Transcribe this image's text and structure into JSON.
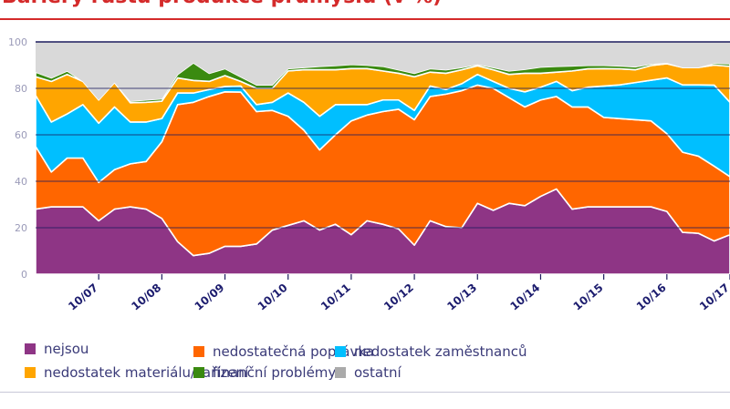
{
  "title": "Bariéry růstu produkce průmyslu (v %)",
  "chart_data": {
    "type": "area",
    "stacked": true,
    "title": "Bariéry růstu produkce průmyslu (v %)",
    "xlabel": "",
    "ylabel": "",
    "ylim": [
      0,
      100
    ],
    "y_ticks": [
      0,
      20,
      40,
      60,
      80,
      100
    ],
    "x_tick_labels": [
      "10/07",
      "10/08",
      "10/09",
      "10/10",
      "10/11",
      "10/12",
      "10/13",
      "10/14",
      "10/15",
      "10/16",
      "10/17"
    ],
    "grid": true,
    "legend_position": "bottom",
    "categories": [
      "10/06",
      "01/07",
      "04/07",
      "07/07",
      "10/07",
      "01/08",
      "04/08",
      "07/08",
      "10/08",
      "01/09",
      "04/09",
      "07/09",
      "10/09",
      "01/10",
      "04/10",
      "07/10",
      "10/10",
      "01/11",
      "04/11",
      "07/11",
      "10/11",
      "01/12",
      "04/12",
      "07/12",
      "10/12",
      "01/13",
      "04/13",
      "07/13",
      "10/13",
      "01/14",
      "04/14",
      "07/14",
      "10/14",
      "01/15",
      "04/15",
      "07/15",
      "10/15",
      "01/16",
      "04/16",
      "07/16",
      "10/16",
      "01/17",
      "04/17",
      "07/17",
      "10/17"
    ],
    "series": [
      {
        "name": "nejsou",
        "color": "#8e3585",
        "values": [
          28,
          29,
          29,
          29,
          23,
          28,
          29,
          28,
          24,
          14,
          8,
          9,
          12,
          12,
          13,
          19,
          21,
          23,
          19,
          21.5,
          17,
          23,
          21.5,
          19.5,
          12.5,
          23,
          20.5,
          20,
          30.5,
          27.5,
          30.5,
          29.5,
          33.5,
          36.7,
          28,
          29,
          29,
          29,
          29,
          29,
          27,
          18,
          17.6,
          14.3,
          17
        ]
      },
      {
        "name": "nedostatečná poptávka",
        "color": "#ff6600",
        "values": [
          27,
          15,
          21,
          21,
          16.5,
          17,
          18.5,
          20.5,
          33,
          59,
          66,
          67.5,
          66.5,
          66.4,
          57,
          51.5,
          47,
          39,
          34.5,
          38.5,
          49,
          45.5,
          48.5,
          51.5,
          54,
          53.5,
          57,
          59,
          50.9,
          52.5,
          45.5,
          42.5,
          41.5,
          39.8,
          44,
          43,
          38.5,
          38,
          37.5,
          37,
          33.5,
          34.5,
          33.2,
          32.2,
          25
        ]
      },
      {
        "name": "nedostatek zaměstnanců",
        "color": "#00bfff",
        "values": [
          22,
          21.5,
          19,
          23,
          25.5,
          27,
          18,
          17,
          10,
          5,
          4,
          3,
          2.3,
          2.6,
          3,
          3.5,
          10,
          12,
          14.5,
          13,
          7,
          4.5,
          5,
          4,
          4,
          4.5,
          2,
          3,
          4.6,
          3,
          4,
          6.5,
          5.5,
          6.5,
          7,
          8.5,
          13.5,
          14.5,
          16,
          17.5,
          24,
          29,
          30.7,
          34.9,
          32
        ]
      },
      {
        "name": "nedostatek materiálu/zařízení",
        "color": "#ffa500",
        "values": [
          8,
          17.5,
          17,
          10,
          10,
          10.5,
          8.3,
          8.5,
          7.5,
          6.5,
          5.4,
          3.5,
          4.7,
          2,
          7,
          6,
          9.5,
          14,
          20,
          15,
          15.5,
          15.5,
          12.5,
          11.5,
          14.5,
          6,
          7,
          6,
          3.7,
          5,
          6,
          8,
          6,
          4,
          8.5,
          7.9,
          7.5,
          6.9,
          5.5,
          6.3,
          6.1,
          7.5,
          7.5,
          8.6,
          15.5
        ]
      },
      {
        "name": "finanční problémy",
        "color": "#3a8a10",
        "values": [
          2,
          1.5,
          1.5,
          0,
          0,
          0,
          0.7,
          1,
          1,
          1.5,
          7.6,
          3.5,
          3,
          2,
          1.5,
          1.5,
          1,
          1,
          1.5,
          1.8,
          1.8,
          1.5,
          2,
          1.5,
          1.5,
          1.5,
          1.5,
          1,
          0.6,
          1,
          1.5,
          1.7,
          2.7,
          2.5,
          2.2,
          1.5,
          1.4,
          1.3,
          1.3,
          0.7,
          0.4,
          0,
          0,
          0.8,
          1.1
        ]
      },
      {
        "name": "ostatní",
        "color": "#d9d9d9",
        "legend_color": "#aaaaaa",
        "values": [
          13,
          15.5,
          12.5,
          17,
          25,
          17.5,
          25.5,
          25,
          24.5,
          14,
          9,
          13.5,
          11.5,
          15,
          18.5,
          18.5,
          11.5,
          11,
          10.5,
          10.2,
          9.7,
          10,
          10.5,
          12,
          13.5,
          11.5,
          12,
          11,
          9.7,
          11,
          12.5,
          11.8,
          10.8,
          10.5,
          10.3,
          10.1,
          10.1,
          10.3,
          10.7,
          9.5,
          9,
          11,
          11,
          9.2,
          9.4
        ]
      }
    ]
  }
}
